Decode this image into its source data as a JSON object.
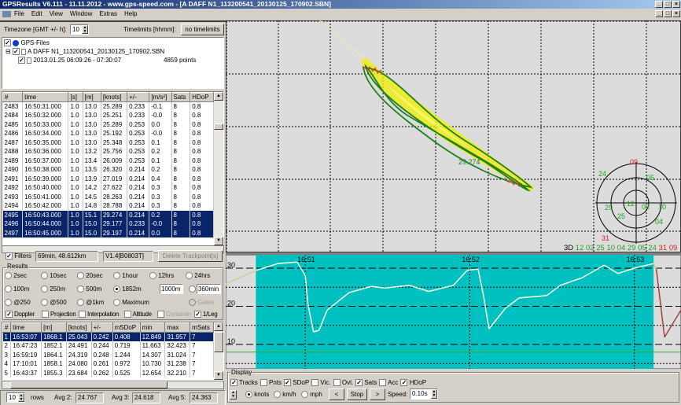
{
  "window": {
    "title": "GPSResults V6.111 - 11.11.2012 - www.gps-speed.com - [A DAFF N1_113200541_20130125_170902.SBN]"
  },
  "menu": [
    "File",
    "Edit",
    "View",
    "Window",
    "Extras",
    "Help"
  ],
  "timezone": {
    "label": "Timezone [GMT +/- h]:",
    "value": "10",
    "timelimits_label": "Timelimits [hhmm]:",
    "timelimits_button": "no timelimits"
  },
  "tree": {
    "root": "GPS-Files",
    "file": "A DAFF N1_113200541_20130125_170902.SBN",
    "session": "2013.01.25 06:09:26 - 07:30:07",
    "points": "4859 points"
  },
  "trackpoints": {
    "columns": [
      "#",
      "time",
      "[s]",
      "[m]",
      "[knots]",
      "+/-",
      "[m/s²]",
      "Sats",
      "HDoP"
    ],
    "rows": [
      [
        "2483",
        "16:50:31.000",
        "1.0",
        "13.0",
        "25.289",
        "0.233",
        "-0.1",
        "8",
        "0.8"
      ],
      [
        "2484",
        "16:50:32.000",
        "1.0",
        "13.0",
        "25.251",
        "0.233",
        "-0.0",
        "8",
        "0.8"
      ],
      [
        "2485",
        "16:50:33.000",
        "1.0",
        "13.0",
        "25.289",
        "0.253",
        "0.0",
        "8",
        "0.8"
      ],
      [
        "2486",
        "16:50:34.000",
        "1.0",
        "13.0",
        "25.192",
        "0.253",
        "-0.0",
        "8",
        "0.8"
      ],
      [
        "2487",
        "16:50:35.000",
        "1.0",
        "13.0",
        "25.348",
        "0.253",
        "0.1",
        "8",
        "0.8"
      ],
      [
        "2488",
        "16:50:36.000",
        "1.0",
        "13.2",
        "25.756",
        "0.253",
        "0.2",
        "8",
        "0.8"
      ],
      [
        "2489",
        "16:50:37.000",
        "1.0",
        "13.4",
        "26.009",
        "0.253",
        "0.1",
        "8",
        "0.8"
      ],
      [
        "2490",
        "16:50:38.000",
        "1.0",
        "13.5",
        "26.320",
        "0.214",
        "0.2",
        "8",
        "0.8"
      ],
      [
        "2491",
        "16:50:39.000",
        "1.0",
        "13.9",
        "27.019",
        "0.214",
        "0.4",
        "8",
        "0.8"
      ],
      [
        "2492",
        "16:50:40.000",
        "1.0",
        "14.2",
        "27.622",
        "0.214",
        "0.3",
        "8",
        "0.8"
      ],
      [
        "2493",
        "16:50:41.000",
        "1.0",
        "14.5",
        "28.263",
        "0.214",
        "0.3",
        "8",
        "0.8"
      ],
      [
        "2494",
        "16:50:42.000",
        "1.0",
        "14.8",
        "28.788",
        "0.214",
        "0.3",
        "8",
        "0.8"
      ],
      [
        "2495",
        "16:50:43.000",
        "1.0",
        "15.1",
        "29.274",
        "0.214",
        "0.2",
        "8",
        "0.8"
      ],
      [
        "2496",
        "16:50:44.000",
        "1.0",
        "15.0",
        "29.177",
        "0.233",
        "-0.0",
        "8",
        "0.8"
      ],
      [
        "2497",
        "16:50:45.000",
        "1.0",
        "15.0",
        "29.197",
        "0.214",
        "0.0",
        "8",
        "0.8"
      ]
    ],
    "selected": [
      "2495",
      "2496",
      "2497"
    ]
  },
  "filters": {
    "label": "Filters",
    "checked": true,
    "summary": "69min, 48.612km",
    "version": "V1.4[B0803T]",
    "delete_button": "Delete Trackpoint[s]"
  },
  "results": {
    "group_label": "Results",
    "radios_row1": [
      "2sec",
      "10sec",
      "20sec",
      "1hour",
      "12hrs",
      "24hrs"
    ],
    "radios_row2": [
      "100m",
      "250m",
      "500m",
      "1852m"
    ],
    "custom_distance": "1000m",
    "custom_time": "360min",
    "radios_row3": [
      "@250",
      "@500",
      "@1km",
      "Maximum"
    ],
    "gates": "Gates",
    "selected": "1852m",
    "checks": [
      {
        "label": "Doppler",
        "checked": true
      },
      {
        "label": "Projection",
        "checked": false
      },
      {
        "label": "Interpolation",
        "checked": false
      },
      {
        "label": "Altitude",
        "checked": false
      },
      {
        "label": "Constrain",
        "checked": false,
        "disabled": true
      },
      {
        "label": "1/Leg",
        "checked": true
      }
    ],
    "columns": [
      "#",
      "time",
      "[m]",
      "[knots]",
      "+/-",
      "mSDoP",
      "min",
      "max",
      "mSats"
    ],
    "rows": [
      [
        "1",
        "16:53:07",
        "1868.1",
        "25.043",
        "0.242",
        "0.408",
        "12.849",
        "31.957",
        "7"
      ],
      [
        "2",
        "16:47:23",
        "1852.1",
        "24.491",
        "0.244",
        "0.719",
        "11.663",
        "32.423",
        "7"
      ],
      [
        "3",
        "16:59:19",
        "1864.1",
        "24.319",
        "0.248",
        "1.244",
        "14.307",
        "31.024",
        "7"
      ],
      [
        "4",
        "17:10:01",
        "1858.1",
        "24.080",
        "0.261",
        "0.972",
        "10.730",
        "31.238",
        "7"
      ],
      [
        "5",
        "16:43:37",
        "1855.3",
        "23.684",
        "0.262",
        "0.525",
        "12.654",
        "32.210",
        "7"
      ]
    ],
    "rows_count": "10",
    "rows_label": "rows",
    "avg2_label": "Avg 2:",
    "avg2": "24.767",
    "avg3_label": "Avg 3:",
    "avg3": "24.618",
    "avg5_label": "Avg 5:",
    "avg5": "24.363"
  },
  "map": {
    "speed_label": "29.274",
    "sky": {
      "mode": "3D",
      "sats_green": [
        "12",
        "02",
        "25",
        "10",
        "04",
        "29",
        "05",
        "24"
      ],
      "sats_red": [
        "31",
        "09"
      ],
      "plot": [
        {
          "id": "09",
          "c": "red"
        },
        {
          "id": "24",
          "c": "green"
        },
        {
          "id": "05",
          "c": "green"
        },
        {
          "id": "12",
          "c": "green"
        },
        {
          "id": "02",
          "c": "green"
        },
        {
          "id": "10",
          "c": "green"
        },
        {
          "id": "29",
          "c": "green"
        },
        {
          "id": "25",
          "c": "green"
        },
        {
          "id": "04",
          "c": "green"
        },
        {
          "id": "31",
          "c": "red"
        }
      ]
    }
  },
  "chart_data": {
    "type": "line",
    "yticks": [
      "30",
      "20",
      "10"
    ],
    "ylim": [
      0,
      34
    ],
    "xticks": [
      "16:51",
      "16:52",
      "16:53"
    ],
    "xrange": [
      "16:50:31",
      "16:53:17"
    ],
    "highlight": [
      "16:50:42",
      "16:53:07"
    ],
    "series": [
      {
        "points": [
          [
            "16:50:31",
            25.9
          ],
          [
            "16:50:42",
            29.4
          ],
          [
            "16:50:50",
            31.2
          ],
          [
            "16:50:57",
            31.6
          ],
          [
            "16:51:00",
            28.1
          ],
          [
            "16:51:01",
            20.5
          ],
          [
            "16:51:03",
            13.3
          ],
          [
            "16:51:05",
            13.7
          ],
          [
            "16:51:08",
            19
          ],
          [
            "16:51:16",
            23.6
          ],
          [
            "16:51:24",
            25.2
          ],
          [
            "16:51:29",
            24.8
          ],
          [
            "16:51:38",
            25.5
          ],
          [
            "16:51:45",
            23.9
          ],
          [
            "16:51:54",
            25.5
          ],
          [
            "16:51:59",
            29.4
          ],
          [
            "16:52:03",
            29.8
          ],
          [
            "16:52:05",
            22.8
          ],
          [
            "16:52:07",
            14.1
          ],
          [
            "16:52:13",
            19.5
          ],
          [
            "16:52:18",
            22.2
          ],
          [
            "16:52:28",
            22.8
          ],
          [
            "16:52:33",
            25.5
          ],
          [
            "16:52:41",
            27.5
          ],
          [
            "16:52:49",
            30.8
          ],
          [
            "16:52:54",
            28.6
          ],
          [
            "16:53:00",
            30
          ],
          [
            "16:53:07",
            31.2
          ],
          [
            "16:53:08",
            29.8
          ],
          [
            "16:53:11",
            11.9
          ],
          [
            "16:53:17",
            19
          ]
        ]
      }
    ],
    "colors": {
      "highlight": "#00c0c0",
      "line": "#ffffe0",
      "outside": "#a04040"
    }
  },
  "display": {
    "group_label": "Display",
    "checks": [
      {
        "label": "Tracks",
        "checked": true
      },
      {
        "label": "Pnts",
        "checked": false
      },
      {
        "label": "SDoP",
        "checked": true
      },
      {
        "label": "Vic.",
        "checked": false
      },
      {
        "label": "Ovl.",
        "checked": false
      },
      {
        "label": "Sats",
        "checked": true
      },
      {
        "label": "Acc",
        "checked": false
      },
      {
        "label": "HDoP",
        "checked": true
      }
    ],
    "units": [
      "knots",
      "km/h",
      "mph"
    ],
    "unit_selected": "knots",
    "prev": "<",
    "stop": "Stop",
    "next": ">",
    "speed_label": "Speed:",
    "speed_value": "0.10s"
  }
}
